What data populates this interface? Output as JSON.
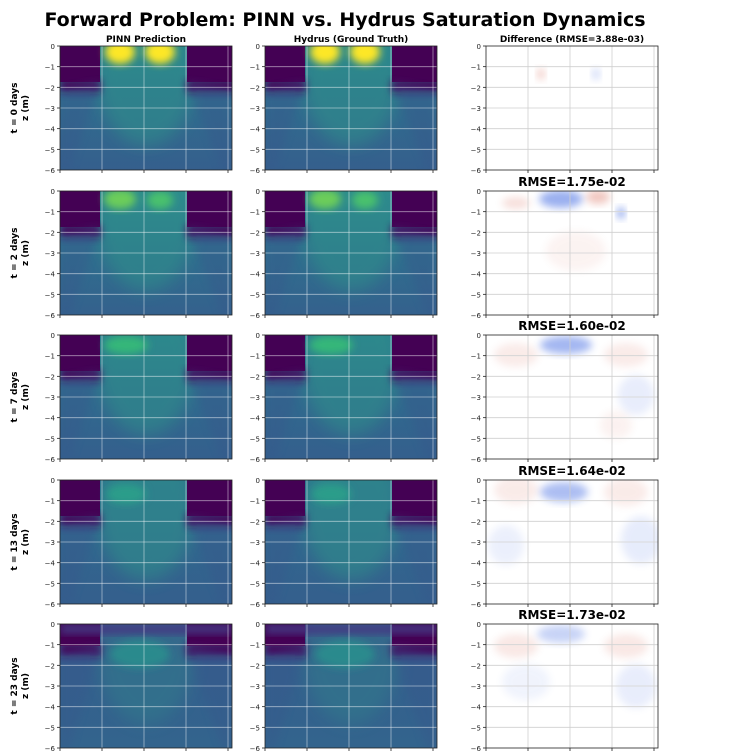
{
  "figure": {
    "title": "Forward Problem: PINN vs. Hydrus Saturation Dynamics",
    "column_titles": [
      "PINN Prediction",
      "Hydrus (Ground Truth)",
      "Difference (RMSE=3.88e-03)"
    ],
    "row_labels": [
      "t = 0 days",
      "t = 2 days",
      "t = 7 days",
      "t = 13 days",
      "t = 23 days"
    ],
    "ylabel": "z (m)",
    "colors": {
      "viridis_dark": "#440154",
      "viridis_teal": "#2a788e",
      "viridis_yellow": "#fde725",
      "diff_red": "#d6604d",
      "diff_blue": "#4a6fe3"
    }
  },
  "chart_data": [
    {
      "type": "heatmap",
      "panel": "PINN Prediction",
      "time": "t = 0 days",
      "ylabel": "z (m)",
      "ylim": [
        -6,
        0
      ],
      "yticks": [
        0,
        -1,
        -2,
        -3,
        -4,
        -5,
        -6
      ],
      "grid": true
    },
    {
      "type": "heatmap",
      "panel": "Hydrus (Ground Truth)",
      "time": "t = 0 days",
      "ylim": [
        -6,
        0
      ],
      "yticks": [
        0,
        -1,
        -2,
        -3,
        -4,
        -5,
        -6
      ],
      "grid": true
    },
    {
      "type": "heatmap",
      "panel": "Difference",
      "time": "t = 0 days",
      "title": "Difference (RMSE=3.88e-03)",
      "rmse": 0.00388,
      "ylim": [
        -6,
        0
      ],
      "yticks": [
        0,
        -1,
        -2,
        -3,
        -4,
        -5,
        -6
      ],
      "grid": true
    },
    {
      "type": "heatmap",
      "panel": "PINN Prediction",
      "time": "t = 2 days",
      "ylabel": "z (m)",
      "ylim": [
        -6,
        0
      ],
      "yticks": [
        0,
        -1,
        -2,
        -3,
        -4,
        -5,
        -6
      ],
      "grid": true
    },
    {
      "type": "heatmap",
      "panel": "Hydrus (Ground Truth)",
      "time": "t = 2 days",
      "ylim": [
        -6,
        0
      ],
      "yticks": [
        0,
        -1,
        -2,
        -3,
        -4,
        -5,
        -6
      ],
      "grid": true
    },
    {
      "type": "heatmap",
      "panel": "Difference",
      "time": "t = 2 days",
      "title": "RMSE=1.75e-02",
      "rmse": 0.0175,
      "ylim": [
        -6,
        0
      ],
      "yticks": [
        0,
        -1,
        -2,
        -3,
        -4,
        -5,
        -6
      ],
      "grid": true
    },
    {
      "type": "heatmap",
      "panel": "PINN Prediction",
      "time": "t = 7 days",
      "ylabel": "z (m)",
      "ylim": [
        -6,
        0
      ],
      "yticks": [
        0,
        -1,
        -2,
        -3,
        -4,
        -5,
        -6
      ],
      "grid": true
    },
    {
      "type": "heatmap",
      "panel": "Hydrus (Ground Truth)",
      "time": "t = 7 days",
      "ylim": [
        -6,
        0
      ],
      "yticks": [
        0,
        -1,
        -2,
        -3,
        -4,
        -5,
        -6
      ],
      "grid": true
    },
    {
      "type": "heatmap",
      "panel": "Difference",
      "time": "t = 7 days",
      "title": "RMSE=1.60e-02",
      "rmse": 0.016,
      "ylim": [
        -6,
        0
      ],
      "yticks": [
        0,
        -1,
        -2,
        -3,
        -4,
        -5,
        -6
      ],
      "grid": true
    },
    {
      "type": "heatmap",
      "panel": "PINN Prediction",
      "time": "t = 13 days",
      "ylabel": "z (m)",
      "ylim": [
        -6,
        0
      ],
      "yticks": [
        0,
        -1,
        -2,
        -3,
        -4,
        -5,
        -6
      ],
      "grid": true
    },
    {
      "type": "heatmap",
      "panel": "Hydrus (Ground Truth)",
      "time": "t = 13 days",
      "ylim": [
        -6,
        0
      ],
      "yticks": [
        0,
        -1,
        -2,
        -3,
        -4,
        -5,
        -6
      ],
      "grid": true
    },
    {
      "type": "heatmap",
      "panel": "Difference",
      "time": "t = 13 days",
      "title": "RMSE=1.64e-02",
      "rmse": 0.0164,
      "ylim": [
        -6,
        0
      ],
      "yticks": [
        0,
        -1,
        -2,
        -3,
        -4,
        -5,
        -6
      ],
      "grid": true
    },
    {
      "type": "heatmap",
      "panel": "PINN Prediction",
      "time": "t = 23 days",
      "ylabel": "z (m)",
      "ylim": [
        -6,
        0
      ],
      "yticks": [
        0,
        -1,
        -2,
        -3,
        -4,
        -5,
        -6
      ],
      "grid": true
    },
    {
      "type": "heatmap",
      "panel": "Hydrus (Ground Truth)",
      "time": "t = 23 days",
      "ylim": [
        -6,
        0
      ],
      "yticks": [
        0,
        -1,
        -2,
        -3,
        -4,
        -5,
        -6
      ],
      "grid": true
    },
    {
      "type": "heatmap",
      "panel": "Difference",
      "time": "t = 23 days",
      "title": "RMSE=1.73e-02",
      "rmse": 0.0173,
      "ylim": [
        -6,
        0
      ],
      "yticks": [
        0,
        -1,
        -2,
        -3,
        -4,
        -5,
        -6
      ],
      "grid": true
    }
  ]
}
